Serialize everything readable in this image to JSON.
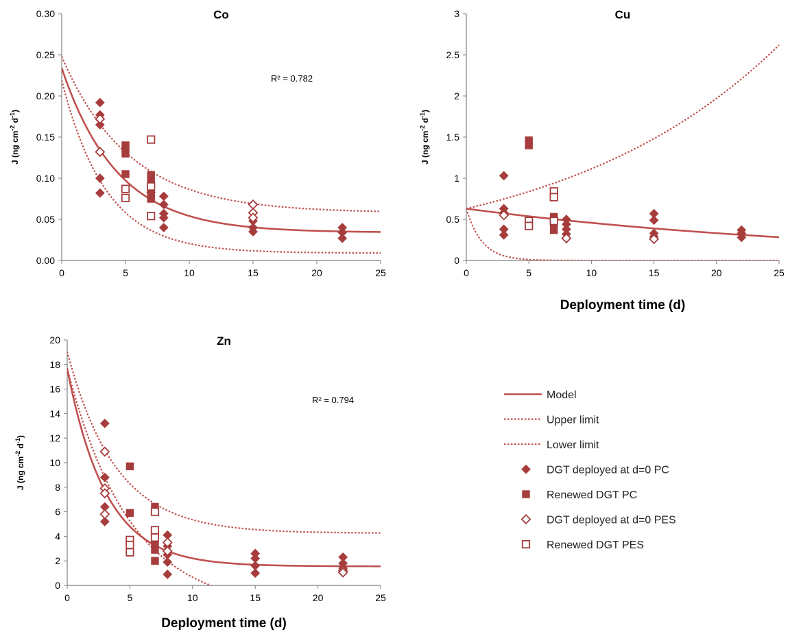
{
  "colors": {
    "series": "#A63C3C",
    "model": "#C0504D",
    "axis": "#7F7F7F"
  },
  "legend": {
    "placement": "bottom-right",
    "items": [
      {
        "label": "Model",
        "kind": "solid"
      },
      {
        "label": "Upper limit",
        "kind": "dotted"
      },
      {
        "label": "Lower limit",
        "kind": "dotted"
      },
      {
        "label": "DGT deployed at d=0 PC",
        "kind": "diamond-filled"
      },
      {
        "label": "Renewed DGT PC",
        "kind": "square-filled"
      },
      {
        "label": "DGT deployed at d=0 PES",
        "kind": "diamond-open"
      },
      {
        "label": "Renewed DGT PES",
        "kind": "square-open"
      }
    ]
  },
  "chart_data": [
    {
      "type": "scatter",
      "title": "Co",
      "xlabel": "",
      "ylabel": "J (ng cm-2 d-1)",
      "xlim": [
        0,
        25
      ],
      "ylim": [
        0,
        0.3
      ],
      "xticks": [
        "0",
        "5",
        "10",
        "15",
        "20",
        "25"
      ],
      "yticks": [
        "0.00",
        "0.05",
        "0.10",
        "0.15",
        "0.20",
        "0.25",
        "0.30"
      ],
      "annotation": "R² = 0.782",
      "curves": {
        "model": {
          "a": 0.034,
          "b": 0.2,
          "k": 0.23
        },
        "upper": {
          "a": 0.058,
          "b": 0.19,
          "k": 0.19
        },
        "lower": {
          "a": 0.009,
          "b": 0.21,
          "k": 0.29
        }
      },
      "series": [
        {
          "name": "DGT deployed at d=0 PC",
          "marker": "diamond-filled",
          "points": [
            [
              3,
              0.192
            ],
            [
              3,
              0.177
            ],
            [
              3,
              0.165
            ],
            [
              3,
              0.1
            ],
            [
              3,
              0.082
            ],
            [
              7,
              0.083
            ],
            [
              8,
              0.078
            ],
            [
              8,
              0.068
            ],
            [
              8,
              0.057
            ],
            [
              8,
              0.052
            ],
            [
              8,
              0.04
            ],
            [
              15,
              0.048
            ],
            [
              15,
              0.04
            ],
            [
              15,
              0.035
            ],
            [
              22,
              0.04
            ],
            [
              22,
              0.034
            ],
            [
              22,
              0.027
            ]
          ]
        },
        {
          "name": "Renewed DGT PC",
          "marker": "square-filled",
          "points": [
            [
              5,
              0.14
            ],
            [
              5,
              0.136
            ],
            [
              5,
              0.13
            ],
            [
              5,
              0.105
            ],
            [
              7,
              0.104
            ],
            [
              7,
              0.095
            ],
            [
              7,
              0.08
            ],
            [
              7,
              0.075
            ]
          ]
        },
        {
          "name": "DGT deployed at d=0 PES",
          "marker": "diamond-open",
          "points": [
            [
              3,
              0.172
            ],
            [
              3,
              0.132
            ],
            [
              15,
              0.068
            ],
            [
              15,
              0.058
            ],
            [
              15,
              0.052
            ]
          ]
        },
        {
          "name": "Renewed DGT PES",
          "marker": "square-open",
          "points": [
            [
              5,
              0.087
            ],
            [
              5,
              0.076
            ],
            [
              7,
              0.147
            ],
            [
              7,
              0.09
            ],
            [
              7,
              0.054
            ]
          ]
        }
      ]
    },
    {
      "type": "scatter",
      "title": "Cu",
      "xlabel": "Deployment time (d)",
      "ylabel": "J (ng cm-2 d-1)",
      "xlim": [
        0,
        25
      ],
      "ylim": [
        0,
        3
      ],
      "xticks": [
        "0",
        "5",
        "10",
        "15",
        "20",
        "25"
      ],
      "yticks": [
        "0",
        "0.5",
        "1",
        "1.5",
        "2",
        "2.5",
        "3"
      ],
      "annotation": "",
      "curves": {
        "model": {
          "a": 0,
          "b": 0.63,
          "k": 0.032
        },
        "upper": {
          "a": 0,
          "b": 0.63,
          "k": -0.057
        },
        "lower": {
          "a": 0,
          "b": 0.63,
          "k": 0.8
        }
      },
      "series": [
        {
          "name": "DGT deployed at d=0 PC",
          "marker": "diamond-filled",
          "points": [
            [
              3,
              1.03
            ],
            [
              3,
              0.63
            ],
            [
              3,
              0.58
            ],
            [
              3,
              0.38
            ],
            [
              3,
              0.31
            ],
            [
              8,
              0.5
            ],
            [
              8,
              0.44
            ],
            [
              8,
              0.38
            ],
            [
              8,
              0.32
            ],
            [
              15,
              0.57
            ],
            [
              15,
              0.49
            ],
            [
              15,
              0.33
            ],
            [
              15,
              0.29
            ],
            [
              22,
              0.37
            ],
            [
              22,
              0.33
            ],
            [
              22,
              0.28
            ]
          ]
        },
        {
          "name": "Renewed DGT PC",
          "marker": "square-filled",
          "points": [
            [
              5,
              1.46
            ],
            [
              5,
              1.4
            ],
            [
              7,
              0.53
            ],
            [
              7,
              0.46
            ],
            [
              7,
              0.37
            ]
          ]
        },
        {
          "name": "DGT deployed at d=0 PES",
          "marker": "diamond-open",
          "points": [
            [
              3,
              0.55
            ],
            [
              8,
              0.27
            ],
            [
              15,
              0.26
            ]
          ]
        },
        {
          "name": "Renewed DGT PES",
          "marker": "square-open",
          "points": [
            [
              5,
              0.48
            ],
            [
              5,
              0.42
            ],
            [
              7,
              0.84
            ],
            [
              7,
              0.77
            ],
            [
              7,
              0.48
            ]
          ]
        }
      ]
    },
    {
      "type": "scatter",
      "title": "Zn",
      "xlabel": "Deployment time (d)",
      "ylabel": "J (ng cm-2 d-1)",
      "xlim": [
        0,
        25
      ],
      "ylim": [
        0,
        20
      ],
      "xticks": [
        "0",
        "5",
        "10",
        "15",
        "20",
        "25"
      ],
      "yticks": [
        "0",
        "2",
        "4",
        "6",
        "8",
        "10",
        "12",
        "14",
        "16",
        "18",
        "20"
      ],
      "annotation": "R² = 0.794",
      "curves": {
        "model": {
          "a": 1.55,
          "b": 16.1,
          "k": 0.32
        },
        "upper": {
          "a": 4.25,
          "b": 14.8,
          "k": 0.26
        },
        "lower": {
          "a": -2.0,
          "b": 19.7,
          "k": 0.2
        }
      },
      "series": [
        {
          "name": "DGT deployed at d=0 PC",
          "marker": "diamond-filled",
          "points": [
            [
              3,
              13.2
            ],
            [
              3,
              8.8
            ],
            [
              3,
              6.4
            ],
            [
              3,
              5.2
            ],
            [
              8,
              4.1
            ],
            [
              8,
              3.2
            ],
            [
              8,
              2.5
            ],
            [
              8,
              1.9
            ],
            [
              8,
              0.9
            ],
            [
              15,
              2.6
            ],
            [
              15,
              2.2
            ],
            [
              15,
              1.6
            ],
            [
              15,
              1.0
            ],
            [
              22,
              2.3
            ],
            [
              22,
              1.8
            ],
            [
              22,
              1.4
            ]
          ]
        },
        {
          "name": "Renewed DGT PC",
          "marker": "square-filled",
          "points": [
            [
              5,
              9.7
            ],
            [
              5,
              5.9
            ],
            [
              7,
              6.4
            ],
            [
              7,
              3.4
            ],
            [
              7,
              2.9
            ],
            [
              7,
              2.0
            ]
          ]
        },
        {
          "name": "DGT deployed at d=0 PES",
          "marker": "diamond-open",
          "points": [
            [
              3,
              10.9
            ],
            [
              3,
              7.9
            ],
            [
              3,
              7.5
            ],
            [
              3,
              5.8
            ],
            [
              8,
              3.5
            ],
            [
              8,
              2.8
            ],
            [
              22,
              1.2
            ],
            [
              22,
              1.05
            ]
          ]
        },
        {
          "name": "Renewed DGT PES",
          "marker": "square-open",
          "points": [
            [
              5,
              3.7
            ],
            [
              5,
              3.3
            ],
            [
              5,
              2.7
            ],
            [
              7,
              6.0
            ],
            [
              7,
              4.5
            ],
            [
              7,
              3.9
            ]
          ]
        }
      ]
    }
  ]
}
